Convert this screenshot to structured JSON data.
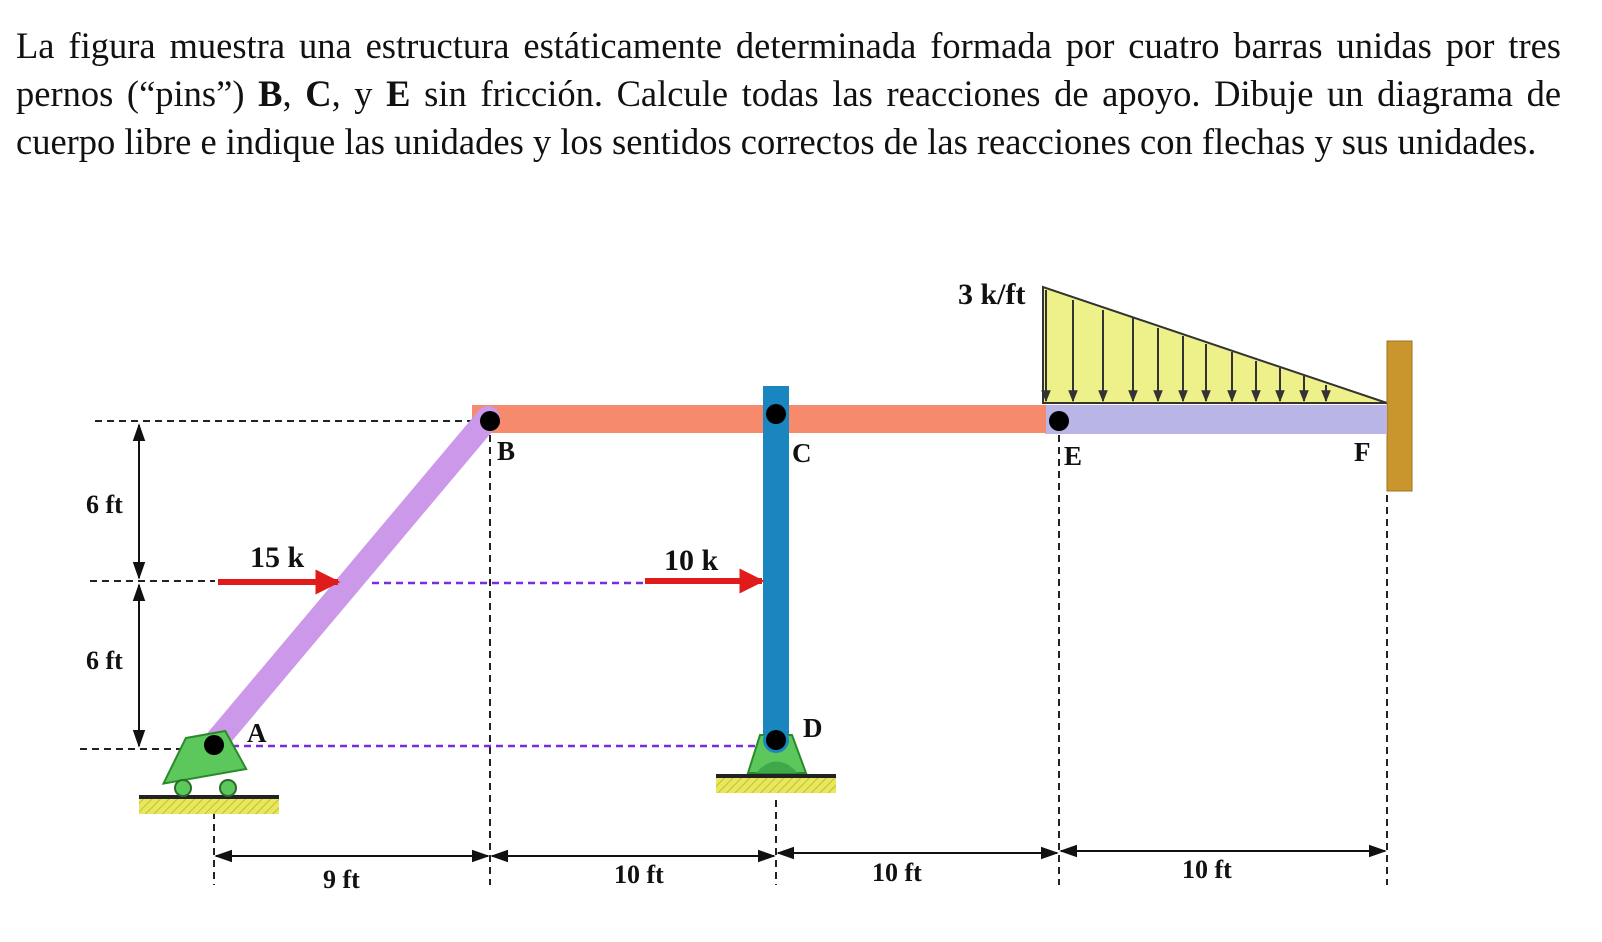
{
  "problem": {
    "t1": "La figura muestra una estructura estáticamente determinada formada por cuatro barras unidas por tres pernos (“pins”) ",
    "b": "B",
    "sep1": ", ",
    "c": "C",
    "sep2": ", y ",
    "e": "E",
    "t2": " sin fricción. Calcule todas las reacciones de apoyo. Dibuje un diagrama de cuerpo libre e indique las unidades y los sentidos correctos de las reacciones con flechas y sus unidades."
  },
  "diagram": {
    "points": {
      "A": "A",
      "B": "B",
      "C": "C",
      "D": "D",
      "E": "E",
      "F": "F"
    },
    "loads": {
      "load_15": "15 k",
      "load_10": "10 k",
      "distributed": "3 k/ft"
    },
    "dims": {
      "v_upper": "6 ft",
      "v_lower": "6 ft",
      "h_ab": "9 ft",
      "h_bc": "10 ft",
      "h_ce": "10 ft",
      "h_ef": "10 ft"
    },
    "colors": {
      "beam_bce": "#f58a6c",
      "bar_ab": "#cc99ea",
      "column_cd": "#1a86c0",
      "beam_ef": "#b9b5e6",
      "distributed_fill": "#eef08a",
      "force_arrow": "#e01b1b",
      "wall": "#c8962c",
      "support": "#5cc85c",
      "ground": "#e8e85a",
      "guide_purple": "#7a2be0"
    }
  }
}
